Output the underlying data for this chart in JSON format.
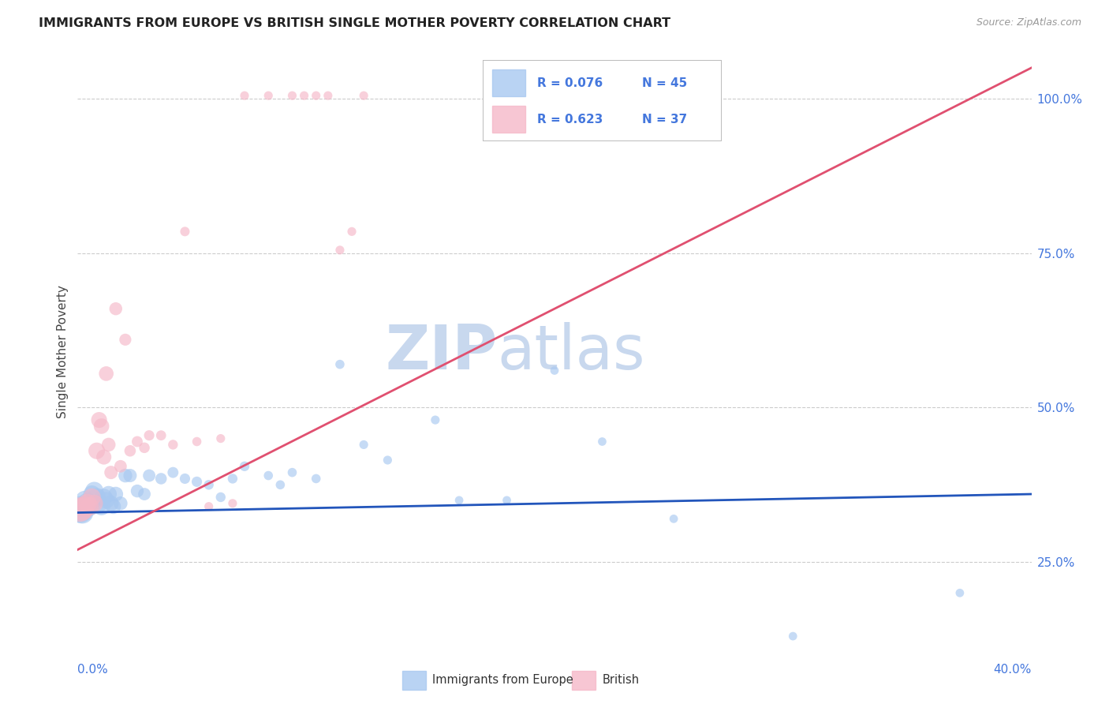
{
  "title": "IMMIGRANTS FROM EUROPE VS BRITISH SINGLE MOTHER POVERTY CORRELATION CHART",
  "source": "Source: ZipAtlas.com",
  "ylabel": "Single Mother Poverty",
  "legend_blue_label": "Immigrants from Europe",
  "legend_pink_label": "British",
  "legend_r_blue": "R = 0.076",
  "legend_n_blue": "N = 45",
  "legend_r_pink": "R = 0.623",
  "legend_n_pink": "N = 37",
  "blue_color": "#A8C8F0",
  "pink_color": "#F5B8C8",
  "line_blue_color": "#2255BB",
  "line_pink_color": "#E05070",
  "text_color_blue": "#4477DD",
  "watermark_color": "#C8D8EE",
  "xlim": [
    0.0,
    0.4
  ],
  "ylim": [
    0.1,
    1.08
  ],
  "ytick_vals": [
    0.25,
    0.5,
    0.75,
    1.0
  ],
  "ytick_labels": [
    "25.0%",
    "50.0%",
    "75.0%",
    "100.0%"
  ],
  "blue_x": [
    0.001,
    0.002,
    0.003,
    0.004,
    0.005,
    0.006,
    0.007,
    0.008,
    0.009,
    0.01,
    0.011,
    0.012,
    0.013,
    0.014,
    0.015,
    0.016,
    0.018,
    0.02,
    0.022,
    0.025,
    0.028,
    0.03,
    0.035,
    0.04,
    0.045,
    0.05,
    0.055,
    0.06,
    0.065,
    0.07,
    0.08,
    0.085,
    0.09,
    0.1,
    0.11,
    0.12,
    0.13,
    0.15,
    0.16,
    0.18,
    0.2,
    0.22,
    0.25,
    0.3,
    0.37
  ],
  "blue_y": [
    0.335,
    0.33,
    0.35,
    0.345,
    0.34,
    0.36,
    0.365,
    0.355,
    0.345,
    0.34,
    0.355,
    0.35,
    0.36,
    0.345,
    0.34,
    0.36,
    0.345,
    0.39,
    0.39,
    0.365,
    0.36,
    0.39,
    0.385,
    0.395,
    0.385,
    0.38,
    0.375,
    0.355,
    0.385,
    0.405,
    0.39,
    0.375,
    0.395,
    0.385,
    0.57,
    0.44,
    0.415,
    0.48,
    0.35,
    0.35,
    0.56,
    0.445,
    0.32,
    0.13,
    0.2
  ],
  "blue_size": [
    600,
    400,
    300,
    350,
    300,
    250,
    280,
    280,
    260,
    260,
    240,
    230,
    220,
    200,
    190,
    180,
    160,
    160,
    150,
    140,
    130,
    130,
    110,
    100,
    90,
    90,
    80,
    80,
    80,
    80,
    70,
    70,
    70,
    70,
    70,
    65,
    65,
    65,
    60,
    60,
    60,
    60,
    60,
    60,
    60
  ],
  "pink_x": [
    0.001,
    0.002,
    0.003,
    0.004,
    0.005,
    0.006,
    0.007,
    0.008,
    0.009,
    0.01,
    0.011,
    0.012,
    0.013,
    0.014,
    0.016,
    0.018,
    0.02,
    0.022,
    0.025,
    0.028,
    0.03,
    0.035,
    0.04,
    0.045,
    0.05,
    0.055,
    0.06,
    0.065,
    0.07,
    0.08,
    0.09,
    0.095,
    0.1,
    0.105,
    0.11,
    0.115,
    0.12
  ],
  "pink_y": [
    0.335,
    0.335,
    0.34,
    0.345,
    0.34,
    0.355,
    0.345,
    0.43,
    0.48,
    0.47,
    0.42,
    0.555,
    0.44,
    0.395,
    0.66,
    0.405,
    0.61,
    0.43,
    0.445,
    0.435,
    0.455,
    0.455,
    0.44,
    0.785,
    0.445,
    0.34,
    0.45,
    0.345,
    1.005,
    1.005,
    1.005,
    1.005,
    1.005,
    1.005,
    0.755,
    0.785,
    1.005
  ],
  "pink_size": [
    500,
    400,
    350,
    300,
    280,
    260,
    250,
    230,
    210,
    200,
    190,
    180,
    160,
    150,
    140,
    130,
    120,
    110,
    100,
    95,
    90,
    85,
    80,
    75,
    70,
    65,
    65,
    65,
    65,
    65,
    65,
    65,
    65,
    65,
    65,
    65,
    65
  ],
  "line_blue_x0": 0.0,
  "line_blue_y0": 0.33,
  "line_blue_x1": 0.4,
  "line_blue_y1": 0.36,
  "line_pink_x0": 0.0,
  "line_pink_y0": 0.27,
  "line_pink_x1": 0.4,
  "line_pink_y1": 1.05
}
